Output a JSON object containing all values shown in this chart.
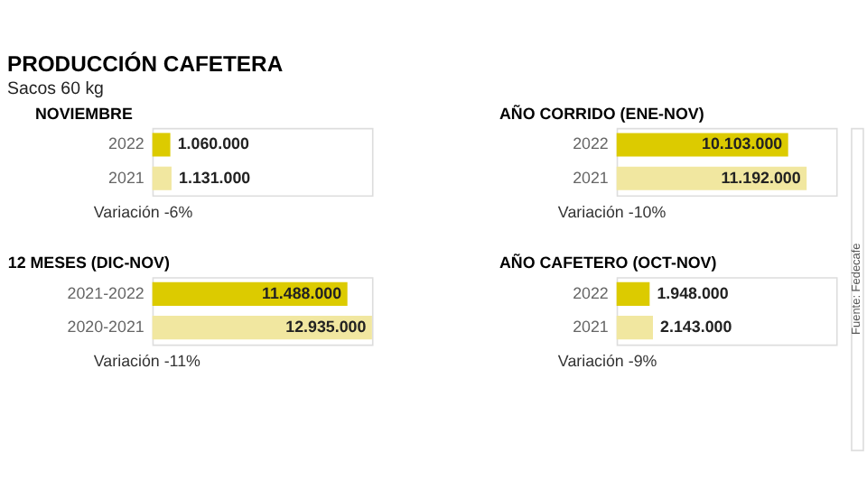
{
  "chart_data": [
    {
      "type": "other",
      "title": "PRODUCCIÓN CAFETERA",
      "subtitle": "Sacos 60 kg",
      "annotations": [
        "Fuente: Fedecafe"
      ]
    },
    {
      "type": "bar",
      "title": "NOVIEMBRE",
      "orientation": "horizontal",
      "categories": [
        "2022",
        "2021"
      ],
      "values": [
        1060000,
        1131000
      ],
      "colors": [
        "#dccb00",
        "#f1e7a0"
      ],
      "value_labels": [
        "1.060.000",
        "1.131.000"
      ],
      "annotations": [
        "Variación -6%"
      ]
    },
    {
      "type": "bar",
      "title": "AÑO CORRIDO (ENE-NOV)",
      "orientation": "horizontal",
      "categories": [
        "2022",
        "2021"
      ],
      "values": [
        10103000,
        11192000
      ],
      "colors": [
        "#dccb00",
        "#f1e7a0"
      ],
      "value_labels": [
        "10.103.000",
        "11.192.000"
      ],
      "annotations": [
        "Variación -10%"
      ]
    },
    {
      "type": "bar",
      "title": "12 MESES (DIC-NOV)",
      "orientation": "horizontal",
      "categories": [
        "2021-2022",
        "2020-2021"
      ],
      "values": [
        11488000,
        12935000
      ],
      "colors": [
        "#dccb00",
        "#f1e7a0"
      ],
      "value_labels": [
        "11.488.000",
        "12.935.000"
      ],
      "annotations": [
        "Variación -11%"
      ]
    },
    {
      "type": "bar",
      "title": "AÑO CAFETERO (OCT-NOV)",
      "orientation": "horizontal",
      "categories": [
        "2022",
        "2021"
      ],
      "values": [
        1948000,
        2143000
      ],
      "colors": [
        "#dccb00",
        "#f1e7a0"
      ],
      "value_labels": [
        "1.948.000",
        "2.143.000"
      ],
      "annotations": [
        "Variación -9%"
      ]
    }
  ]
}
